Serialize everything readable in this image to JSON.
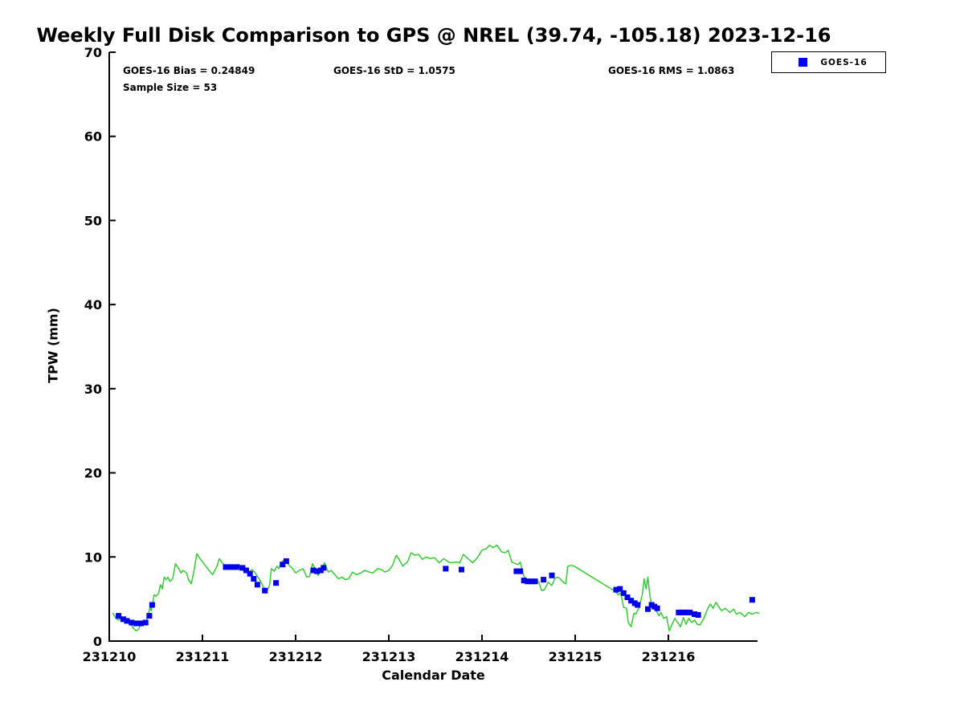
{
  "colors": {
    "gps_line": "#32cd32",
    "goes16_marker": "#0000ee",
    "axis": "#000000",
    "background": "#ffffff"
  },
  "chart_data": {
    "type": "line",
    "title": "Weekly Full Disk Comparison to GPS @ NREL (39.74, -105.18) 2023-12-16",
    "xlabel": "Calendar Date",
    "ylabel": "TPW (mm)",
    "ylim": [
      0,
      70
    ],
    "yticks": [
      0,
      10,
      20,
      30,
      40,
      50,
      60,
      70
    ],
    "xtick_labels": [
      "231210",
      "231211",
      "231212",
      "231213",
      "231214",
      "231215",
      "231216"
    ],
    "xtick_days": [
      0,
      1,
      2,
      3,
      4,
      5,
      6
    ],
    "x_encoding": "days since 231210",
    "xlim_days": [
      0,
      6.97
    ],
    "grid": false,
    "legend": {
      "position": "top-right",
      "entries": [
        {
          "label": "GOES-16",
          "marker": "square",
          "color": "#0000ee"
        }
      ]
    },
    "annotations": {
      "bias": "GOES-16 Bias = 0.24849",
      "std": "GOES-16 StD = 1.0575",
      "rms": "GOES-16 RMS = 1.0863",
      "sample": "Sample Size = 53"
    },
    "series": [
      {
        "name": "GPS",
        "type": "line",
        "color": "#32cd32",
        "points": [
          [
            0.04,
            3.3
          ],
          [
            0.07,
            2.7
          ],
          [
            0.1,
            2.5
          ],
          [
            0.13,
            2.7
          ],
          [
            0.16,
            2.3
          ],
          [
            0.19,
            2.4
          ],
          [
            0.22,
            2.2
          ],
          [
            0.26,
            1.5
          ],
          [
            0.29,
            1.2
          ],
          [
            0.32,
            1.5
          ],
          [
            0.34,
            2.2
          ],
          [
            0.37,
            2.0
          ],
          [
            0.4,
            2.5
          ],
          [
            0.42,
            3.2
          ],
          [
            0.44,
            4.1
          ],
          [
            0.45,
            3.6
          ],
          [
            0.47,
            4.6
          ],
          [
            0.48,
            5.5
          ],
          [
            0.5,
            5.3
          ],
          [
            0.53,
            5.7
          ],
          [
            0.55,
            6.7
          ],
          [
            0.57,
            6.2
          ],
          [
            0.59,
            7.6
          ],
          [
            0.61,
            7.3
          ],
          [
            0.63,
            7.6
          ],
          [
            0.65,
            7.1
          ],
          [
            0.68,
            7.4
          ],
          [
            0.71,
            9.2
          ],
          [
            0.74,
            8.7
          ],
          [
            0.77,
            8.1
          ],
          [
            0.79,
            8.4
          ],
          [
            0.83,
            8.1
          ],
          [
            0.85,
            7.3
          ],
          [
            0.88,
            6.8
          ],
          [
            0.91,
            8.4
          ],
          [
            0.94,
            10.4
          ],
          [
            0.98,
            9.7
          ],
          [
            1.03,
            9.0
          ],
          [
            1.07,
            8.4
          ],
          [
            1.11,
            7.9
          ],
          [
            1.16,
            9.0
          ],
          [
            1.18,
            9.8
          ],
          [
            1.22,
            9.2
          ],
          [
            1.26,
            8.9
          ],
          [
            1.3,
            8.8
          ],
          [
            1.34,
            8.9
          ],
          [
            1.38,
            8.7
          ],
          [
            1.42,
            8.8
          ],
          [
            1.46,
            8.5
          ],
          [
            1.5,
            8.2
          ],
          [
            1.53,
            8.5
          ],
          [
            1.56,
            8.2
          ],
          [
            1.59,
            7.7
          ],
          [
            1.62,
            7.2
          ],
          [
            1.65,
            6.5
          ],
          [
            1.69,
            5.9
          ],
          [
            1.72,
            6.6
          ],
          [
            1.74,
            8.6
          ],
          [
            1.77,
            8.3
          ],
          [
            1.8,
            8.9
          ],
          [
            1.82,
            8.6
          ],
          [
            1.84,
            9.2
          ],
          [
            1.87,
            9.6
          ],
          [
            1.9,
            9.4
          ],
          [
            1.93,
            9.0
          ],
          [
            1.96,
            8.7
          ],
          [
            2.0,
            8.1
          ],
          [
            2.04,
            8.4
          ],
          [
            2.08,
            8.6
          ],
          [
            2.12,
            7.6
          ],
          [
            2.15,
            7.7
          ],
          [
            2.18,
            9.2
          ],
          [
            2.21,
            8.6
          ],
          [
            2.24,
            7.8
          ],
          [
            2.28,
            8.7
          ],
          [
            2.31,
            9.3
          ],
          [
            2.35,
            8.2
          ],
          [
            2.38,
            8.4
          ],
          [
            2.42,
            7.9
          ],
          [
            2.46,
            7.4
          ],
          [
            2.5,
            7.6
          ],
          [
            2.53,
            7.3
          ],
          [
            2.57,
            7.4
          ],
          [
            2.61,
            8.2
          ],
          [
            2.65,
            7.9
          ],
          [
            2.7,
            8.1
          ],
          [
            2.74,
            8.4
          ],
          [
            2.79,
            8.2
          ],
          [
            2.83,
            8.1
          ],
          [
            2.88,
            8.6
          ],
          [
            2.92,
            8.5
          ],
          [
            2.96,
            8.2
          ],
          [
            3.0,
            8.4
          ],
          [
            3.04,
            9.0
          ],
          [
            3.08,
            10.2
          ],
          [
            3.11,
            9.7
          ],
          [
            3.15,
            8.9
          ],
          [
            3.2,
            9.4
          ],
          [
            3.24,
            10.5
          ],
          [
            3.28,
            10.2
          ],
          [
            3.32,
            10.3
          ],
          [
            3.36,
            9.7
          ],
          [
            3.4,
            10.0
          ],
          [
            3.44,
            9.8
          ],
          [
            3.49,
            9.9
          ],
          [
            3.54,
            9.3
          ],
          [
            3.59,
            9.8
          ],
          [
            3.64,
            9.4
          ],
          [
            3.68,
            9.3
          ],
          [
            3.72,
            9.4
          ],
          [
            3.76,
            9.3
          ],
          [
            3.8,
            10.3
          ],
          [
            3.85,
            9.8
          ],
          [
            3.9,
            9.3
          ],
          [
            3.95,
            9.9
          ],
          [
            4.0,
            10.8
          ],
          [
            4.05,
            11.0
          ],
          [
            4.08,
            11.4
          ],
          [
            4.12,
            11.1
          ],
          [
            4.16,
            11.4
          ],
          [
            4.21,
            10.6
          ],
          [
            4.25,
            10.5
          ],
          [
            4.28,
            10.8
          ],
          [
            4.32,
            9.4
          ],
          [
            4.36,
            9.2
          ],
          [
            4.39,
            9.1
          ],
          [
            4.41,
            9.4
          ],
          [
            4.44,
            8.0
          ],
          [
            4.47,
            7.3
          ],
          [
            4.51,
            7.2
          ],
          [
            4.55,
            7.3
          ],
          [
            4.58,
            7.1
          ],
          [
            4.61,
            7.0
          ],
          [
            4.64,
            6.0
          ],
          [
            4.67,
            6.1
          ],
          [
            4.71,
            7.0
          ],
          [
            4.75,
            6.6
          ],
          [
            4.78,
            7.4
          ],
          [
            4.81,
            7.6
          ],
          [
            4.84,
            7.4
          ],
          [
            4.87,
            7.0
          ],
          [
            4.9,
            6.8
          ],
          [
            4.92,
            8.9
          ],
          [
            4.96,
            9.0
          ],
          [
            4.99,
            8.9
          ],
          [
            5.43,
            5.9
          ],
          [
            5.46,
            5.5
          ],
          [
            5.49,
            5.7
          ],
          [
            5.52,
            4.0
          ],
          [
            5.55,
            3.9
          ],
          [
            5.57,
            2.2
          ],
          [
            5.6,
            1.7
          ],
          [
            5.63,
            3.3
          ],
          [
            5.65,
            3.2
          ],
          [
            5.69,
            4.1
          ],
          [
            5.72,
            5.5
          ],
          [
            5.74,
            7.4
          ],
          [
            5.76,
            6.2
          ],
          [
            5.78,
            7.6
          ],
          [
            5.8,
            5.5
          ],
          [
            5.82,
            4.3
          ],
          [
            5.85,
            3.8
          ],
          [
            5.87,
            3.6
          ],
          [
            5.9,
            3.0
          ],
          [
            5.92,
            3.4
          ],
          [
            5.95,
            2.7
          ],
          [
            5.98,
            2.9
          ],
          [
            6.01,
            1.2
          ],
          [
            6.04,
            2.0
          ],
          [
            6.07,
            2.7
          ],
          [
            6.1,
            2.2
          ],
          [
            6.13,
            1.7
          ],
          [
            6.16,
            2.8
          ],
          [
            6.19,
            2.0
          ],
          [
            6.22,
            2.7
          ],
          [
            6.25,
            2.2
          ],
          [
            6.28,
            2.5
          ],
          [
            6.31,
            2.0
          ],
          [
            6.34,
            1.9
          ],
          [
            6.38,
            2.7
          ],
          [
            6.42,
            3.8
          ],
          [
            6.45,
            4.4
          ],
          [
            6.48,
            3.9
          ],
          [
            6.51,
            4.6
          ],
          [
            6.54,
            4.1
          ],
          [
            6.57,
            3.6
          ],
          [
            6.61,
            3.9
          ],
          [
            6.66,
            3.4
          ],
          [
            6.7,
            3.8
          ],
          [
            6.73,
            3.2
          ],
          [
            6.77,
            3.4
          ],
          [
            6.82,
            2.9
          ],
          [
            6.86,
            3.4
          ],
          [
            6.9,
            3.2
          ],
          [
            6.94,
            3.4
          ],
          [
            6.97,
            3.3
          ]
        ]
      },
      {
        "name": "GOES-16",
        "type": "scatter",
        "marker": "square",
        "color": "#0000ee",
        "points": [
          [
            0.1,
            3.0
          ],
          [
            0.15,
            2.6
          ],
          [
            0.19,
            2.4
          ],
          [
            0.24,
            2.2
          ],
          [
            0.29,
            2.1
          ],
          [
            0.34,
            2.1
          ],
          [
            0.39,
            2.2
          ],
          [
            0.43,
            3.0
          ],
          [
            0.46,
            4.3
          ],
          [
            1.25,
            8.8
          ],
          [
            1.31,
            8.8
          ],
          [
            1.37,
            8.8
          ],
          [
            1.43,
            8.7
          ],
          [
            1.47,
            8.4
          ],
          [
            1.51,
            8.0
          ],
          [
            1.55,
            7.4
          ],
          [
            1.59,
            6.7
          ],
          [
            1.67,
            6.0
          ],
          [
            1.79,
            6.9
          ],
          [
            1.86,
            9.1
          ],
          [
            1.9,
            9.5
          ],
          [
            2.19,
            8.4
          ],
          [
            2.23,
            8.3
          ],
          [
            2.27,
            8.4
          ],
          [
            2.3,
            8.7
          ],
          [
            3.61,
            8.6
          ],
          [
            3.78,
            8.5
          ],
          [
            4.37,
            8.3
          ],
          [
            4.41,
            8.3
          ],
          [
            4.45,
            7.2
          ],
          [
            4.49,
            7.1
          ],
          [
            4.53,
            7.1
          ],
          [
            4.57,
            7.1
          ],
          [
            4.66,
            7.3
          ],
          [
            4.75,
            7.8
          ],
          [
            5.44,
            6.1
          ],
          [
            5.48,
            6.2
          ],
          [
            5.52,
            5.7
          ],
          [
            5.56,
            5.2
          ],
          [
            5.6,
            4.8
          ],
          [
            5.64,
            4.5
          ],
          [
            5.67,
            4.3
          ],
          [
            5.78,
            3.8
          ],
          [
            5.82,
            4.3
          ],
          [
            5.85,
            4.1
          ],
          [
            5.88,
            3.9
          ],
          [
            6.11,
            3.4
          ],
          [
            6.15,
            3.4
          ],
          [
            6.19,
            3.4
          ],
          [
            6.23,
            3.4
          ],
          [
            6.28,
            3.2
          ],
          [
            6.32,
            3.1
          ],
          [
            6.9,
            4.9
          ]
        ]
      }
    ]
  }
}
